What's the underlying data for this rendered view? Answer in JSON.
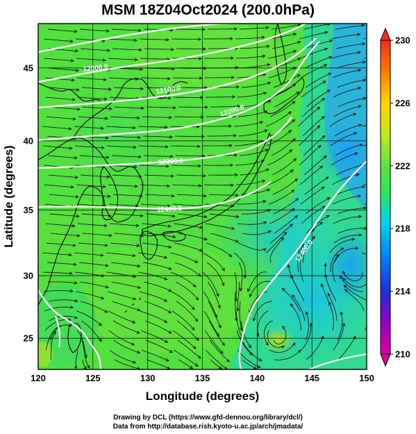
{
  "title": "MSM 18Z04Oct2024 (200.0hPa)",
  "axes": {
    "xlabel": "Longitude (degrees)",
    "ylabel": "Latitude  (degrees)",
    "xlim": [
      120,
      150
    ],
    "ylim": [
      22.5,
      48
    ],
    "xticks": [
      "120",
      "125",
      "130",
      "135",
      "140",
      "145",
      "150"
    ],
    "yticks": [
      "25",
      "30",
      "35",
      "40",
      "45"
    ]
  },
  "colorbar": {
    "min": 210,
    "max": 230,
    "ticks": [
      "230",
      "226",
      "222",
      "218",
      "214",
      "210"
    ]
  },
  "contours": [
    {
      "label": "12000.0",
      "value": 12000
    },
    {
      "label": "12100.0",
      "value": 12100
    },
    {
      "label": "12200.0",
      "value": 12200
    },
    {
      "label": "12300.0",
      "value": 12300
    },
    {
      "label": "12400.0",
      "value": 12400
    },
    {
      "label": "12400.0",
      "value": 12400
    }
  ],
  "credits": {
    "line1": "Drawing by DCL (https://www.gfd-dennou.org/library/dcl/)",
    "line2": "Data from http://database.rish.kyoto-u.ac.jp/arch/jmadata/"
  },
  "colors": {
    "land_outline": "#000000",
    "contour_line": "#ffffff",
    "streamline": "#000000",
    "colormap": [
      "#e0009a",
      "#8f00c8",
      "#1f2cd8",
      "#0088ff",
      "#00d5e6",
      "#2ee65a",
      "#5be53a",
      "#c4e820",
      "#ffd400",
      "#ff7a00",
      "#f03020"
    ]
  }
}
